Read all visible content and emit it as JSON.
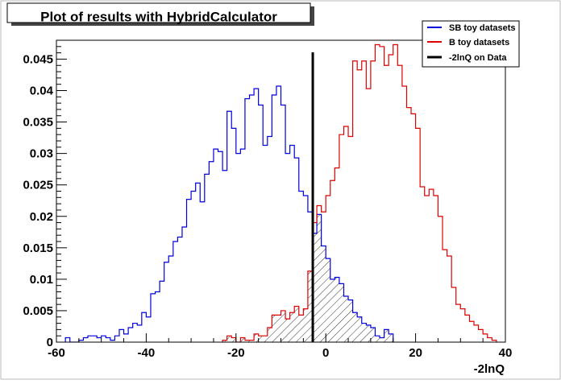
{
  "chart_data": {
    "type": "histogram",
    "title": "Plot of results with HybridCalculator",
    "xlabel": "-2lnQ",
    "ylabel": "",
    "xlim": [
      -60,
      40
    ],
    "ylim": [
      0,
      0.048
    ],
    "x_ticks": [
      -60,
      -40,
      -20,
      0,
      20,
      40
    ],
    "x_tick_labels": [
      "-60",
      "-40",
      "-20",
      "0",
      "20",
      "40"
    ],
    "y_ticks": [
      0,
      0.005,
      0.01,
      0.015,
      0.02,
      0.025,
      0.03,
      0.035,
      0.04,
      0.045
    ],
    "y_tick_labels": [
      "0",
      "0.005",
      "0.01",
      "0.015",
      "0.02",
      "0.025",
      "0.03",
      "0.035",
      "0.04",
      "0.045"
    ],
    "legend": {
      "position": "top-right",
      "entries": [
        {
          "label": "SB toy datasets",
          "color": "#0000dd"
        },
        {
          "label": "B toy datasets",
          "color": "#dd0000"
        },
        {
          "label": "-2lnQ on Data",
          "color": "#000000"
        }
      ]
    },
    "data_line": {
      "name": "-2lnQ on Data",
      "x": -2.9,
      "color": "#000000"
    },
    "series": [
      {
        "name": "SB toy datasets",
        "color": "#0000dd",
        "fill": "hatched, x > -2.9",
        "bin_edges": [
          -58,
          -57,
          -56,
          -55,
          -54,
          -53,
          -52,
          -51,
          -50,
          -49,
          -48,
          -47,
          -46,
          -45,
          -44,
          -43,
          -42,
          -41,
          -40,
          -39,
          -38,
          -37,
          -36,
          -35,
          -34,
          -33,
          -32,
          -31,
          -30,
          -29,
          -28,
          -27,
          -26,
          -25,
          -24,
          -23,
          -22,
          -21,
          -20,
          -19,
          -18,
          -17,
          -16,
          -15,
          -14,
          -13,
          -12,
          -11,
          -10,
          -9,
          -8,
          -7,
          -6,
          -5,
          -4,
          -3,
          -2,
          -1,
          0,
          1,
          2,
          3,
          4,
          5,
          6,
          7,
          8,
          9,
          10,
          11,
          12,
          13,
          14,
          15
        ],
        "values": [
          0.0007,
          0.0,
          0.0,
          0.0003,
          0.0007,
          0.001,
          0.001,
          0.0007,
          0.001,
          0.0007,
          0.0003,
          0.001,
          0.002,
          0.0013,
          0.0023,
          0.003,
          0.0027,
          0.0047,
          0.004,
          0.0077,
          0.008,
          0.0097,
          0.0127,
          0.0137,
          0.016,
          0.0167,
          0.0183,
          0.0227,
          0.024,
          0.0253,
          0.0223,
          0.0267,
          0.0287,
          0.0307,
          0.0303,
          0.0273,
          0.0367,
          0.034,
          0.03,
          0.0307,
          0.0387,
          0.0393,
          0.0403,
          0.0377,
          0.0313,
          0.0327,
          0.0393,
          0.0407,
          0.0377,
          0.03,
          0.0313,
          0.0293,
          0.024,
          0.0233,
          0.0207,
          0.0173,
          0.0203,
          0.0153,
          0.0133,
          0.01,
          0.0103,
          0.0093,
          0.0073,
          0.0067,
          0.0047,
          0.004,
          0.003,
          0.0027,
          0.0023,
          0.001,
          0.0007,
          0.002,
          0.0013
        ]
      },
      {
        "name": "B toy datasets",
        "color": "#dd0000",
        "fill": "hatched, x < -2.9",
        "bin_edges": [
          -23,
          -22,
          -21,
          -20,
          -19,
          -18,
          -17,
          -16,
          -15,
          -14,
          -13,
          -12,
          -11,
          -10,
          -9,
          -8,
          -7,
          -6,
          -5,
          -4,
          -3,
          -2,
          -1,
          0,
          1,
          2,
          3,
          4,
          5,
          6,
          7,
          8,
          9,
          10,
          11,
          12,
          13,
          14,
          15,
          16,
          17,
          18,
          19,
          20,
          21,
          22,
          23,
          24,
          25,
          26,
          27,
          28,
          29,
          30,
          31,
          32,
          33,
          34,
          35,
          36,
          37,
          38
        ],
        "values": [
          0.0003,
          0.001,
          0.0007,
          0.0,
          0.0007,
          0.0003,
          0.0003,
          0.0013,
          0.001,
          0.001,
          0.0023,
          0.0043,
          0.0043,
          0.005,
          0.0037,
          0.0047,
          0.0057,
          0.0043,
          0.0053,
          0.0113,
          0.019,
          0.0217,
          0.0207,
          0.0233,
          0.0257,
          0.0277,
          0.033,
          0.0343,
          0.0327,
          0.0447,
          0.0433,
          0.0447,
          0.0403,
          0.0447,
          0.0473,
          0.047,
          0.044,
          0.0457,
          0.0473,
          0.044,
          0.0407,
          0.0373,
          0.0363,
          0.034,
          0.0247,
          0.0233,
          0.0243,
          0.0233,
          0.02,
          0.0147,
          0.0137,
          0.0087,
          0.006,
          0.0053,
          0.0043,
          0.0033,
          0.0027,
          0.002,
          0.0013,
          0.0007,
          0.0003
        ]
      }
    ]
  }
}
